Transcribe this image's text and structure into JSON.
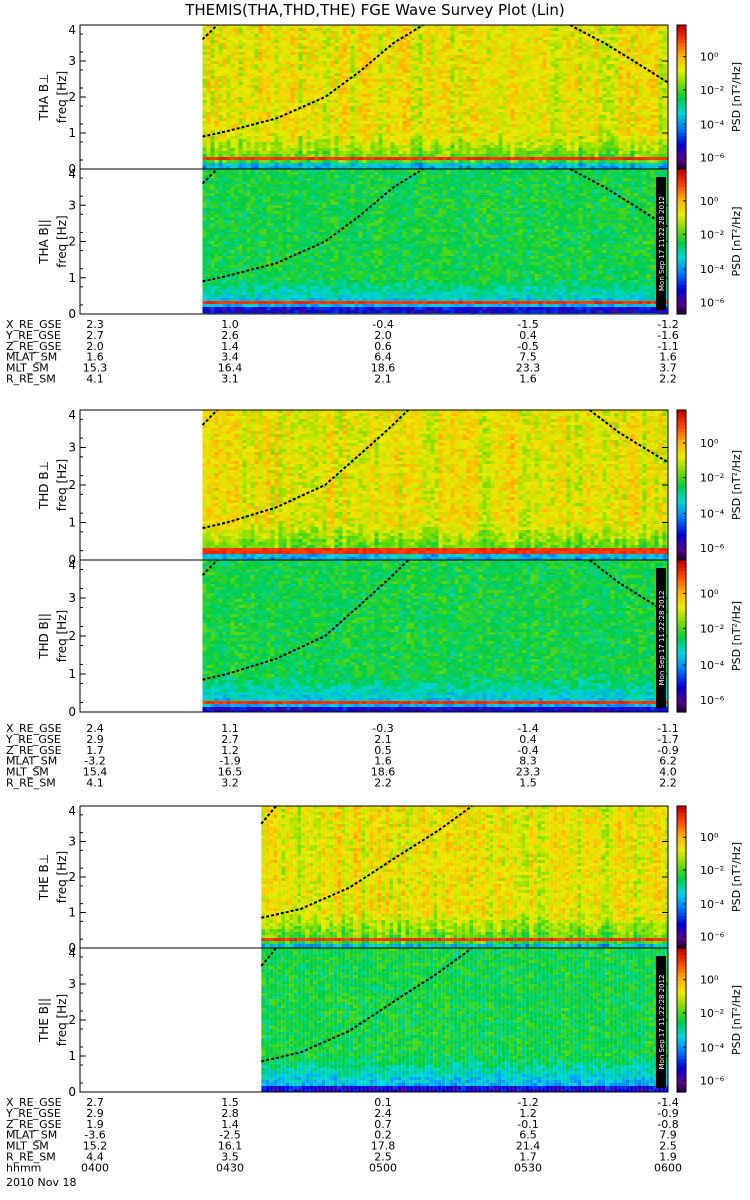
{
  "title": "THEMIS(THA,THD,THE) FGE Wave Survey Plot (Lin)",
  "colorbar": {
    "label": "PSD [nT²/Hz]",
    "ticks": [
      "10⁰",
      "10⁻²",
      "10⁻⁴",
      "10⁻⁶"
    ],
    "log10_range": [
      -7,
      1.5
    ]
  },
  "stamp": "Mon Sep 17 11:22:28 2012",
  "chart_data": [
    {
      "type": "heatmap",
      "panel": "THA B⊥",
      "ylabel_top": "THA B⊥",
      "ylabel": "freq [Hz]",
      "ylim": [
        0,
        4
      ],
      "y_ticks": [
        "0",
        "1",
        "2",
        "3",
        "4"
      ],
      "data_start": "0425",
      "strong_band_hz": 0.3,
      "noise_band_hz": [
        0,
        0.2
      ],
      "upper_level": 0.1,
      "curves": [
        {
          "name": "",
          "points": [
            [
              "0425",
              0.9
            ],
            [
              "0430",
              1.05
            ],
            [
              "0440",
              1.4
            ],
            [
              "0450",
              2.0
            ],
            [
              "0457",
              2.7
            ],
            [
              "0504",
              3.5
            ],
            [
              "0510",
              4.0
            ]
          ]
        },
        {
          "name": "",
          "points": [
            [
              "0540",
              4.0
            ],
            [
              "0547",
              3.5
            ],
            [
              "0553",
              3.0
            ],
            [
              "0600",
              2.4
            ]
          ]
        },
        {
          "name": "",
          "points": [
            [
              "0425",
              3.6
            ],
            [
              "0428",
              4.0
            ]
          ]
        }
      ]
    },
    {
      "type": "heatmap",
      "panel": "THA B∥",
      "ylabel_top": "THA B||",
      "ylabel": "freq [Hz]",
      "ylim": [
        0,
        4
      ],
      "y_ticks": [
        "0",
        "1",
        "2",
        "3",
        "4"
      ],
      "data_start": "0425",
      "strong_band_hz": 0.3,
      "noise_band_hz": [
        0,
        0.2
      ],
      "upper_level": 0.002,
      "curves": [
        {
          "name": "",
          "points": [
            [
              "0425",
              0.9
            ],
            [
              "0430",
              1.05
            ],
            [
              "0440",
              1.4
            ],
            [
              "0450",
              2.0
            ],
            [
              "0457",
              2.7
            ],
            [
              "0504",
              3.5
            ],
            [
              "0510",
              4.0
            ]
          ]
        },
        {
          "name": "",
          "points": [
            [
              "0540",
              4.0
            ],
            [
              "0547",
              3.5
            ],
            [
              "0553",
              3.0
            ],
            [
              "0600",
              2.4
            ]
          ]
        },
        {
          "name": "",
          "points": [
            [
              "0425",
              3.6
            ],
            [
              "0428",
              4.0
            ]
          ]
        }
      ]
    },
    {
      "type": "heatmap",
      "panel": "THD B⊥",
      "ylabel_top": "THD B⊥",
      "ylabel": "freq [Hz]",
      "ylim": [
        0,
        4
      ],
      "y_ticks": [
        "0",
        "1",
        "2",
        "3",
        "4"
      ],
      "data_start": "0425",
      "strong_band_hz": 0.25,
      "noise_band_hz": [
        0,
        0.15
      ],
      "upper_level": 0.1,
      "curves": [
        {
          "name": "",
          "points": [
            [
              "0425",
              0.85
            ],
            [
              "0430",
              1.0
            ],
            [
              "0440",
              1.4
            ],
            [
              "0450",
              2.0
            ],
            [
              "0457",
              2.8
            ],
            [
              "0503",
              3.5
            ],
            [
              "0507",
              4.0
            ]
          ]
        },
        {
          "name": "",
          "points": [
            [
              "0544",
              4.0
            ],
            [
              "0550",
              3.4
            ],
            [
              "0555",
              3.0
            ],
            [
              "0600",
              2.6
            ]
          ]
        },
        {
          "name": "",
          "points": [
            [
              "0425",
              3.6
            ],
            [
              "0428",
              4.0
            ]
          ]
        }
      ]
    },
    {
      "type": "heatmap",
      "panel": "THD B∥",
      "ylabel_top": "THD B||",
      "ylabel": "freq [Hz]",
      "ylim": [
        0,
        4
      ],
      "y_ticks": [
        "0",
        "1",
        "2",
        "3",
        "4"
      ],
      "data_start": "0425",
      "strong_band_hz": 0.25,
      "noise_band_hz": [
        0,
        0.15
      ],
      "upper_level": 0.002,
      "curves": [
        {
          "name": "",
          "points": [
            [
              "0425",
              0.85
            ],
            [
              "0430",
              1.0
            ],
            [
              "0440",
              1.4
            ],
            [
              "0450",
              2.0
            ],
            [
              "0457",
              2.8
            ],
            [
              "0503",
              3.5
            ],
            [
              "0507",
              4.0
            ]
          ]
        },
        {
          "name": "",
          "points": [
            [
              "0544",
              4.0
            ],
            [
              "0550",
              3.4
            ],
            [
              "0555",
              3.0
            ],
            [
              "0600",
              2.6
            ]
          ]
        },
        {
          "name": "",
          "points": [
            [
              "0425",
              3.6
            ],
            [
              "0428",
              4.0
            ]
          ]
        }
      ]
    },
    {
      "type": "heatmap",
      "panel": "THE B⊥",
      "ylabel_top": "THE B⊥",
      "ylabel": "freq [Hz]",
      "ylim": [
        0,
        4
      ],
      "y_ticks": [
        "0",
        "1",
        "2",
        "3",
        "4"
      ],
      "data_start": "0437",
      "strong_band_hz": 0.25,
      "noise_band_hz": [
        0,
        0.15
      ],
      "upper_level": 0.1,
      "curves": [
        {
          "name": "",
          "points": [
            [
              "0437",
              0.85
            ],
            [
              "0445",
              1.1
            ],
            [
              "0455",
              1.7
            ],
            [
              "0505",
              2.6
            ],
            [
              "0513",
              3.3
            ],
            [
              "0520",
              4.0
            ]
          ]
        },
        {
          "name": "",
          "points": [
            [
              "0437",
              3.5
            ],
            [
              "0440",
              4.0
            ]
          ]
        }
      ]
    },
    {
      "type": "heatmap",
      "panel": "THE B∥",
      "ylabel_top": "THE B||",
      "ylabel": "freq [Hz]",
      "ylim": [
        0,
        4
      ],
      "y_ticks": [
        "0",
        "1",
        "2",
        "3",
        "4"
      ],
      "data_start": "0437",
      "strong_band_hz": null,
      "noise_band_hz": [
        0,
        0.15
      ],
      "upper_level": 0.002,
      "curves": [
        {
          "name": "",
          "points": [
            [
              "0437",
              0.85
            ],
            [
              "0445",
              1.1
            ],
            [
              "0455",
              1.7
            ],
            [
              "0505",
              2.6
            ],
            [
              "0513",
              3.3
            ],
            [
              "0520",
              4.0
            ]
          ]
        },
        {
          "name": "",
          "points": [
            [
              "0437",
              3.5
            ],
            [
              "0440",
              4.0
            ]
          ]
        }
      ]
    }
  ],
  "ephemeris": [
    {
      "probe": "THA",
      "rows": [
        {
          "label": "X_RE_GSE",
          "values": [
            "2.3",
            "1.0",
            "-0.4",
            "-1.5",
            "-1.2"
          ]
        },
        {
          "label": "Y_RE_GSE",
          "values": [
            "2.7",
            "2.6",
            "2.0",
            "0.4",
            "-1.6"
          ]
        },
        {
          "label": "Z_RE_GSE",
          "values": [
            "2.0",
            "1.4",
            "0.6",
            "-0.5",
            "-1.1"
          ]
        },
        {
          "label": "MLAT_SM",
          "values": [
            "1.6",
            "3.4",
            "6.4",
            "7.5",
            "1.6"
          ]
        },
        {
          "label": "MLT_SM",
          "values": [
            "15.3",
            "16.4",
            "18.6",
            "23.3",
            "3.7"
          ]
        },
        {
          "label": "R_RE_SM",
          "values": [
            "4.1",
            "3.1",
            "2.1",
            "1.6",
            "2.2"
          ]
        }
      ]
    },
    {
      "probe": "THD",
      "rows": [
        {
          "label": "X_RE_GSE",
          "values": [
            "2.4",
            "1.1",
            "-0.3",
            "-1.4",
            "-1.1"
          ]
        },
        {
          "label": "Y_RE_GSE",
          "values": [
            "2.9",
            "2.7",
            "2.1",
            "0.4",
            "-1.7"
          ]
        },
        {
          "label": "Z_RE_GSE",
          "values": [
            "1.7",
            "1.2",
            "0.5",
            "-0.4",
            "-0.9"
          ]
        },
        {
          "label": "MLAT_SM",
          "values": [
            "-3.2",
            "-1.9",
            "1.6",
            "8.3",
            "6.2"
          ]
        },
        {
          "label": "MLT_SM",
          "values": [
            "15.4",
            "16.5",
            "18.6",
            "23.3",
            "4.0"
          ]
        },
        {
          "label": "R_RE_SM",
          "values": [
            "4.1",
            "3.2",
            "2.2",
            "1.5",
            "2.2"
          ]
        }
      ]
    },
    {
      "probe": "THE",
      "rows": [
        {
          "label": "X_RE_GSE",
          "values": [
            "2.7",
            "1.5",
            "0.1",
            "-1.2",
            "-1.4"
          ]
        },
        {
          "label": "Y_RE_GSE",
          "values": [
            "2.9",
            "2.8",
            "2.4",
            "1.2",
            "-0.9"
          ]
        },
        {
          "label": "Z_RE_GSE",
          "values": [
            "1.9",
            "1.4",
            "0.7",
            "-0.1",
            "-0.8"
          ]
        },
        {
          "label": "MLAT_SM",
          "values": [
            "-3.6",
            "-2.5",
            "0.2",
            "6.5",
            "7.9"
          ]
        },
        {
          "label": "MLT_SM",
          "values": [
            "15.2",
            "16.1",
            "17.8",
            "21.4",
            "2.5"
          ]
        },
        {
          "label": "R_RE_SM",
          "values": [
            "4.4",
            "3.5",
            "2.5",
            "1.7",
            "1.9"
          ]
        },
        {
          "label": "hhmm",
          "values": [
            "0400",
            "0430",
            "0500",
            "0530",
            "0600"
          ]
        }
      ]
    }
  ],
  "x_axis": {
    "range": [
      "0400",
      "0600"
    ],
    "date": "2010 Nov 18"
  }
}
